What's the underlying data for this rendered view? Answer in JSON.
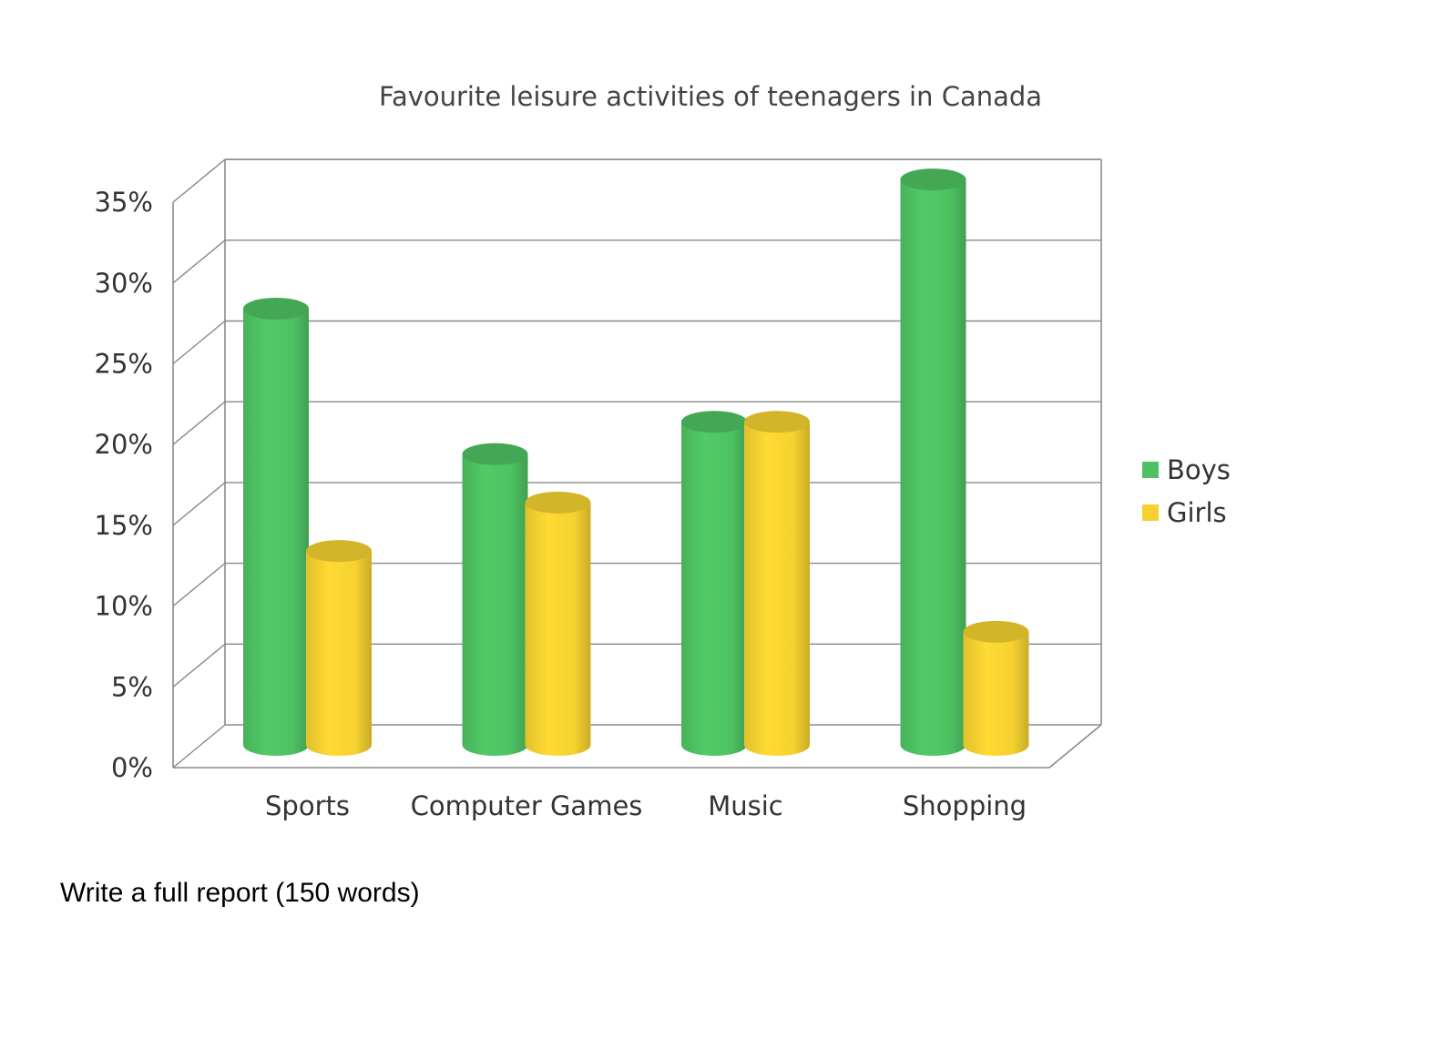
{
  "chart_data": {
    "type": "bar",
    "title": "Favourite leisure activities of teenagers in Canada",
    "xlabel": "",
    "ylabel": "",
    "categories": [
      "Sports",
      "Computer Games",
      "Music",
      "Shopping"
    ],
    "series": [
      {
        "name": "Boys",
        "values": [
          27,
          18,
          20,
          35
        ],
        "color": "#4ec262"
      },
      {
        "name": "Girls",
        "values": [
          12,
          15,
          20,
          7
        ],
        "color": "#f5d230"
      }
    ],
    "ylim": [
      0,
      35
    ],
    "yticks": [
      "0%",
      "5%",
      "10%",
      "15%",
      "20%",
      "25%",
      "30%",
      "35%"
    ],
    "grid": true,
    "legend": "right",
    "style": "3d-cylinder"
  },
  "prompt": {
    "text": "Write a full report (150 words)"
  }
}
